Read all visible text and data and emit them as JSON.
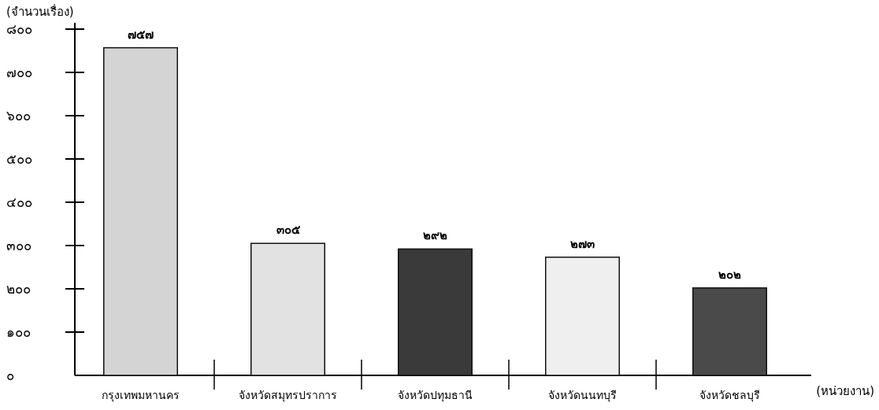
{
  "chart_data": {
    "type": "bar",
    "ylabel": "(จำนวนเรื่อง)",
    "xlabel": "(หน่วยงาน)",
    "categories": [
      "กรุงเทพมหานคร",
      "จังหวัดสมุทรปราการ",
      "จังหวัดปทุมธานี",
      "จังหวัดนนทบุรี",
      "จังหวัดชลบุรี"
    ],
    "values": [
      757,
      305,
      292,
      273,
      202
    ],
    "value_labels": [
      "๗๕๗",
      "๓๐๕",
      "๒๙๒",
      "๒๗๓",
      "๒๐๒"
    ],
    "colors": [
      "#d4d4d4",
      "#e2e2e2",
      "#3a3a3a",
      "#efefef",
      "#4a4a4a"
    ],
    "ylim": [
      0,
      800
    ],
    "yticks": [
      {
        "value": 0,
        "label": "๐"
      },
      {
        "value": 100,
        "label": "๑๐๐"
      },
      {
        "value": 200,
        "label": "๒๐๐"
      },
      {
        "value": 300,
        "label": "๓๐๐"
      },
      {
        "value": 400,
        "label": "๔๐๐"
      },
      {
        "value": 500,
        "label": "๕๐๐"
      },
      {
        "value": 600,
        "label": "๖๐๐"
      },
      {
        "value": 700,
        "label": "๗๐๐"
      },
      {
        "value": 800,
        "label": "๘๐๐"
      }
    ],
    "grid": false
  }
}
